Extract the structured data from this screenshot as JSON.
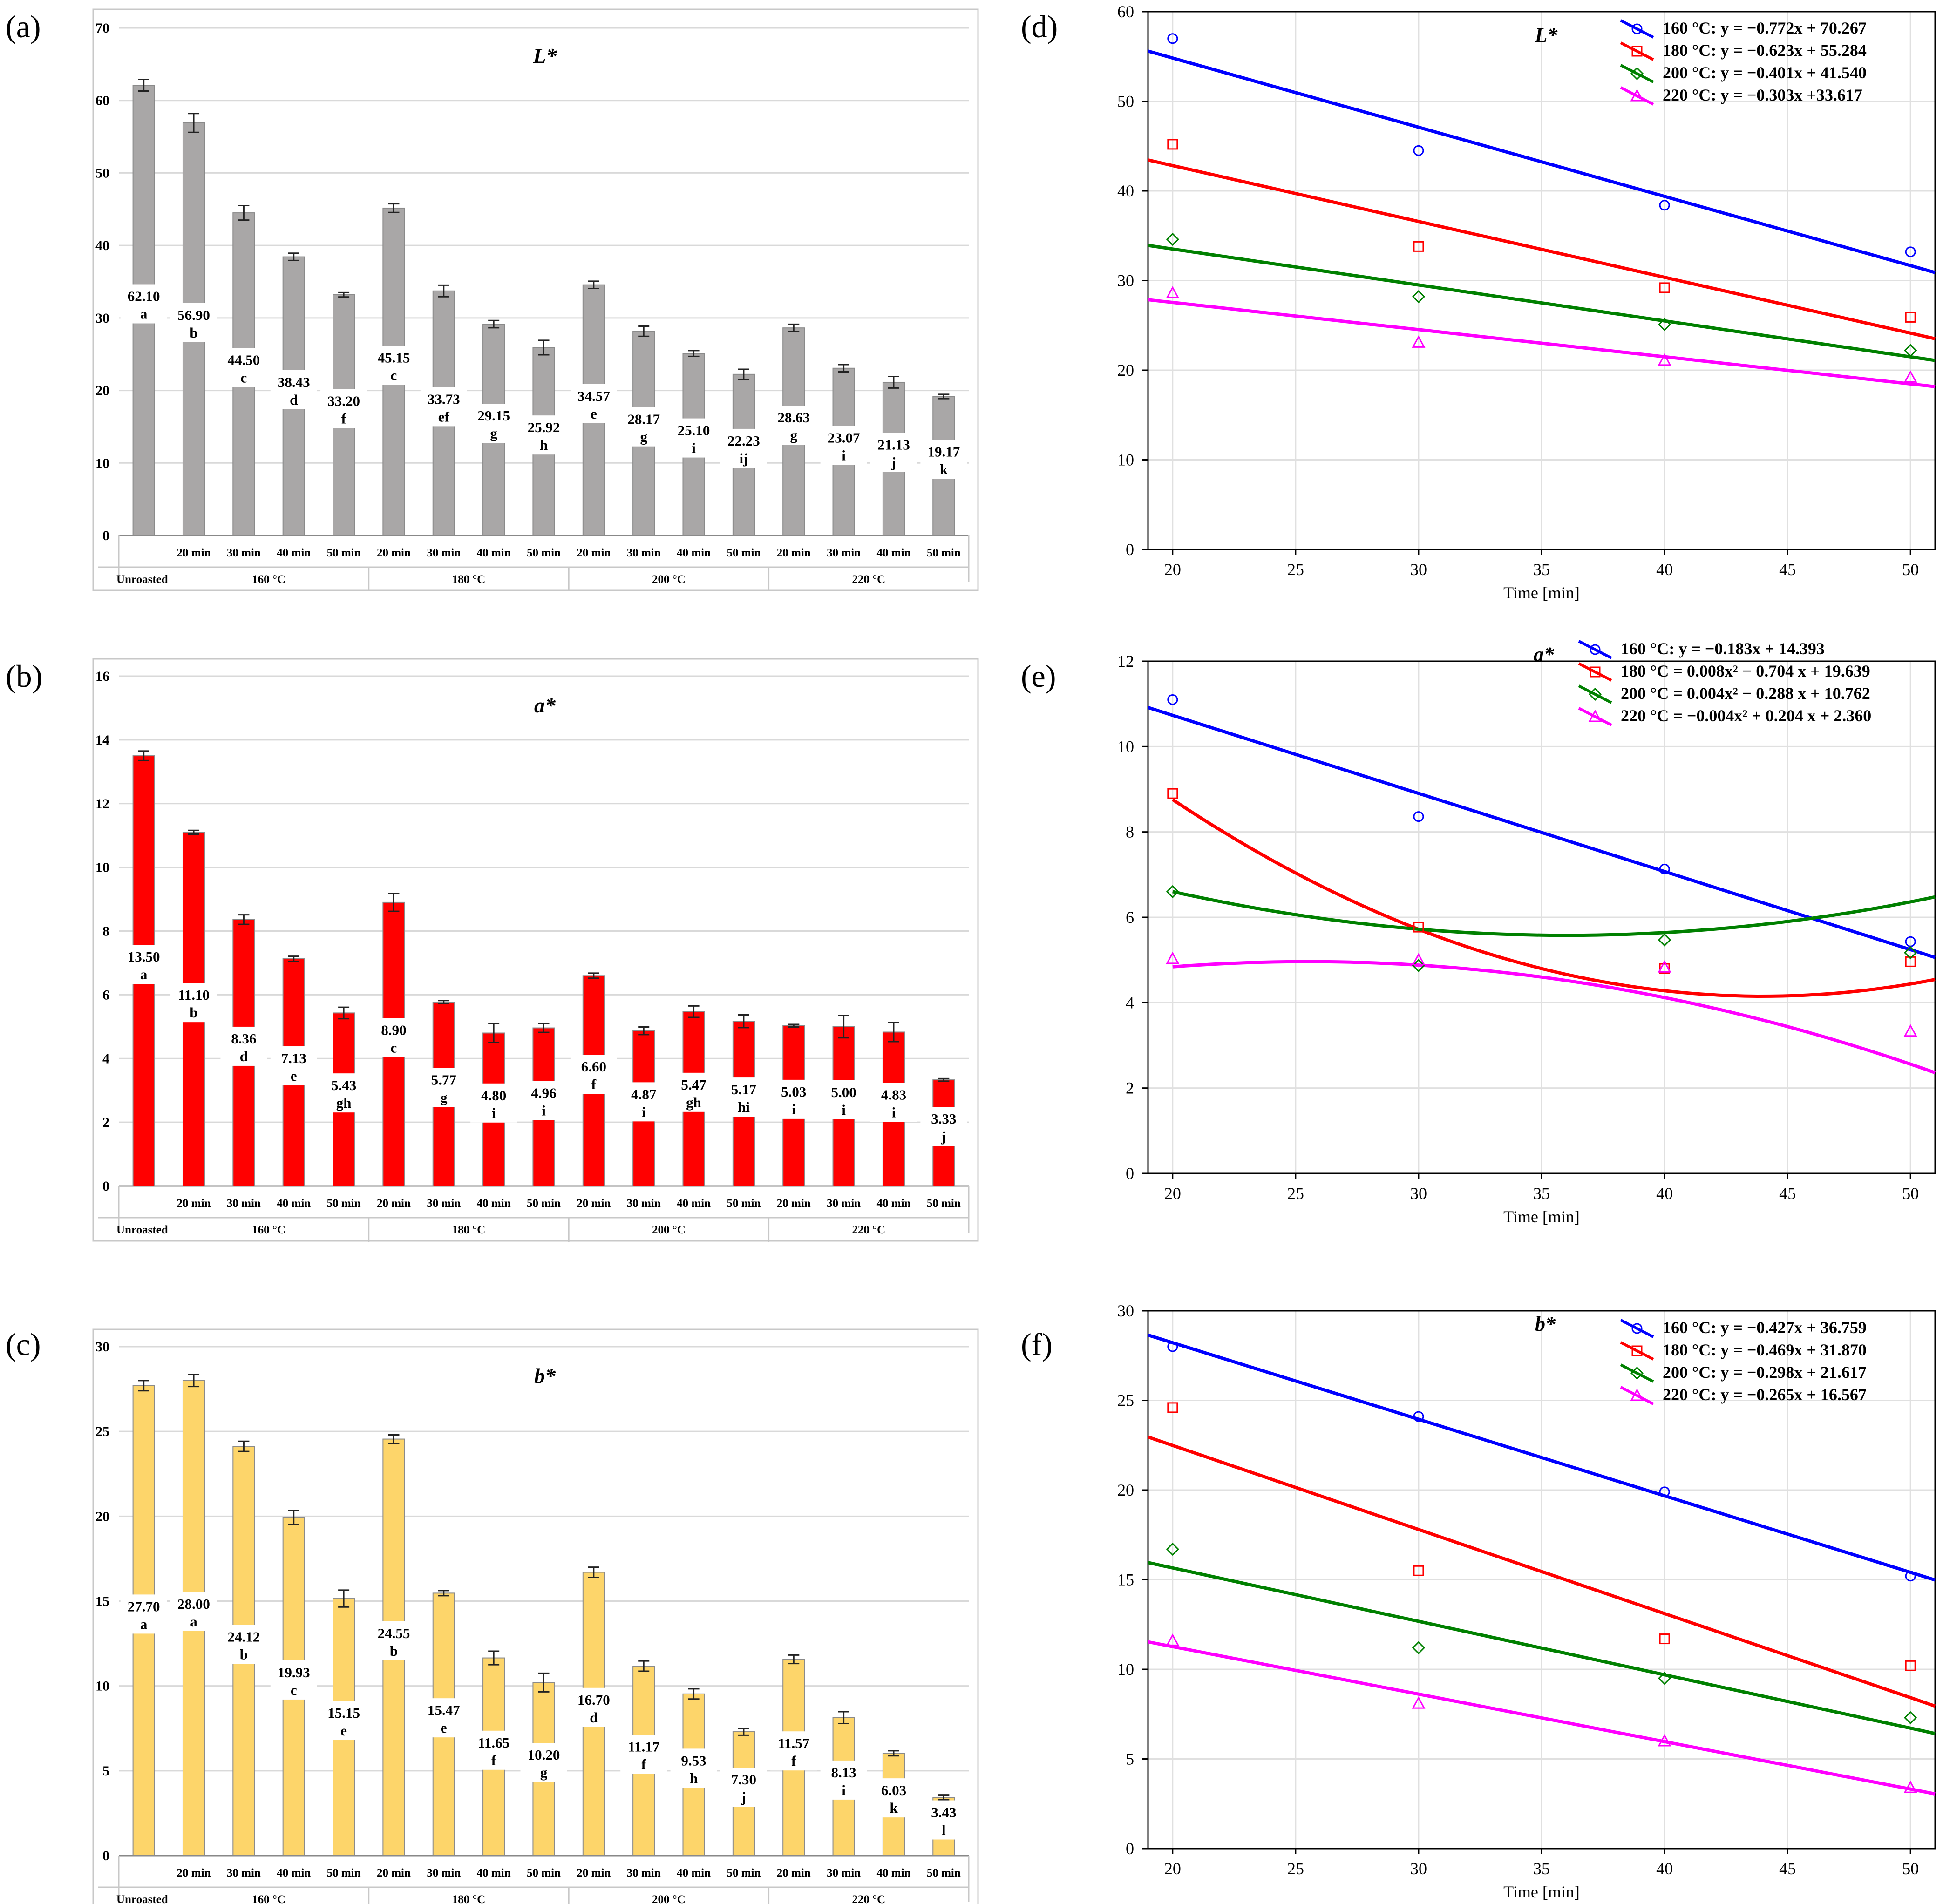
{
  "panel_labels": [
    "(a)",
    "(b)",
    "(c)",
    "(d)",
    "(e)",
    "(f)"
  ],
  "group_labels": [
    "Unroasted",
    "160 °C",
    "180 °C",
    "200 °C",
    "220 °C"
  ],
  "time_labels": [
    "20 min",
    "30 min",
    "40 min",
    "50 min"
  ],
  "scatter_xlabel": "Time [min]",
  "chart_data": [
    {
      "id": "a",
      "type": "bar",
      "title": "L*",
      "color": "#a9a7a7",
      "categories": [
        "Unroasted",
        "160 °C 20 min",
        "160 °C 30 min",
        "160 °C 40 min",
        "160 °C 50 min",
        "180 °C 20 min",
        "180 °C 30 min",
        "180 °C 40 min",
        "180 °C 50 min",
        "200 °C 20 min",
        "200 °C 30 min",
        "200 °C 40 min",
        "200 °C 50 min",
        "220 °C 20 min",
        "220 °C 30 min",
        "220 °C 40 min",
        "220 °C 50 min"
      ],
      "values": [
        62.1,
        56.9,
        44.5,
        38.43,
        33.2,
        45.15,
        33.73,
        29.15,
        25.92,
        34.57,
        28.17,
        25.1,
        22.23,
        28.63,
        23.07,
        21.13,
        19.17
      ],
      "errors": [
        0.8,
        1.3,
        1.0,
        0.5,
        0.3,
        0.6,
        0.8,
        0.5,
        1.0,
        0.5,
        0.7,
        0.4,
        0.7,
        0.5,
        0.5,
        0.8,
        0.3
      ],
      "value_labels": [
        "62.10",
        "56.90",
        "44.50",
        "38.43",
        "33.20",
        "45.15",
        "33.73",
        "29.15",
        "25.92",
        "34.57",
        "28.17",
        "25.10",
        "22.23",
        "28.63",
        "23.07",
        "21.13",
        "19.17"
      ],
      "letters": [
        "a",
        "b",
        "c",
        "d",
        "f",
        "c",
        "ef",
        "g",
        "h",
        "e",
        "g",
        "i",
        "ij",
        "g",
        "i",
        "j",
        "k"
      ],
      "yticks": [
        "0",
        "10",
        "20",
        "30",
        "40",
        "50",
        "60",
        "70"
      ],
      "ylim": [
        0,
        70
      ]
    },
    {
      "id": "b",
      "type": "bar",
      "title": "a*",
      "color": "#ff0000",
      "categories": [
        "Unroasted",
        "160 °C 20 min",
        "160 °C 30 min",
        "160 °C 40 min",
        "160 °C 50 min",
        "180 °C 20 min",
        "180 °C 30 min",
        "180 °C 40 min",
        "180 °C 50 min",
        "200 °C 20 min",
        "200 °C 30 min",
        "200 °C 40 min",
        "200 °C 50 min",
        "220 °C 20 min",
        "220 °C 30 min",
        "220 °C 40 min",
        "220 °C 50 min"
      ],
      "values": [
        13.5,
        11.1,
        8.36,
        7.13,
        5.43,
        8.9,
        5.77,
        4.8,
        4.96,
        6.6,
        4.87,
        5.47,
        5.17,
        5.03,
        5.0,
        4.83,
        3.33
      ],
      "errors": [
        0.15,
        0.06,
        0.15,
        0.08,
        0.18,
        0.28,
        0.05,
        0.3,
        0.14,
        0.08,
        0.12,
        0.18,
        0.2,
        0.04,
        0.35,
        0.3,
        0.04
      ],
      "value_labels": [
        "13.50",
        "11.10",
        "8.36",
        "7.13",
        "5.43",
        "8.90",
        "5.77",
        "4.80",
        "4.96",
        "6.60",
        "4.87",
        "5.47",
        "5.17",
        "5.03",
        "5.00",
        "4.83",
        "3.33"
      ],
      "letters": [
        "a",
        "b",
        "d",
        "e",
        "gh",
        "c",
        "g",
        "i",
        "i",
        "f",
        "i",
        "gh",
        "hi",
        "i",
        "i",
        "i",
        "j"
      ],
      "yticks": [
        "0",
        "2",
        "4",
        "6",
        "8",
        "10",
        "12",
        "14",
        "16"
      ],
      "ylim": [
        0,
        16
      ]
    },
    {
      "id": "c",
      "type": "bar",
      "title": "b*",
      "color": "#fdd56a",
      "categories": [
        "Unroasted",
        "160 °C 20 min",
        "160 °C 30 min",
        "160 °C 40 min",
        "160 °C 50 min",
        "180 °C 20 min",
        "180 °C 30 min",
        "180 °C 40 min",
        "180 °C 50 min",
        "200 °C 20 min",
        "200 °C 30 min",
        "200 °C 40 min",
        "200 °C 50 min",
        "220 °C 20 min",
        "220 °C 30 min",
        "220 °C 40 min",
        "220 °C 50 min"
      ],
      "values": [
        27.7,
        28.0,
        24.12,
        19.93,
        15.15,
        24.55,
        15.47,
        11.65,
        10.2,
        16.7,
        11.17,
        9.53,
        7.3,
        11.57,
        8.13,
        6.03,
        3.43
      ],
      "errors": [
        0.3,
        0.35,
        0.3,
        0.4,
        0.5,
        0.25,
        0.15,
        0.4,
        0.55,
        0.3,
        0.3,
        0.3,
        0.2,
        0.25,
        0.35,
        0.15,
        0.15
      ],
      "value_labels": [
        "27.70",
        "28.00",
        "24.12",
        "19.93",
        "15.15",
        "24.55",
        "15.47",
        "11.65",
        "10.20",
        "16.70",
        "11.17",
        "9.53",
        "7.30",
        "11.57",
        "8.13",
        "6.03",
        "3.43"
      ],
      "letters": [
        "a",
        "a",
        "b",
        "c",
        "e",
        "b",
        "e",
        "f",
        "g",
        "d",
        "f",
        "h",
        "j",
        "f",
        "i",
        "k",
        "l"
      ],
      "yticks": [
        "0",
        "5",
        "10",
        "15",
        "20",
        "25",
        "30"
      ],
      "ylim": [
        0,
        30
      ]
    },
    {
      "id": "d",
      "type": "scatter",
      "title": "L*",
      "xlabel": "Time [min]",
      "xlim": [
        19,
        51
      ],
      "ylim": [
        0,
        60
      ],
      "xticks": [
        "20",
        "25",
        "30",
        "35",
        "40",
        "45",
        "50"
      ],
      "yticks": [
        "0",
        "10",
        "20",
        "30",
        "40",
        "50",
        "60"
      ],
      "x": [
        20,
        30,
        40,
        50
      ],
      "series": [
        {
          "name": "160 °C",
          "color": "#0000ff",
          "marker": "circle",
          "values": [
            57.0,
            44.5,
            38.4,
            33.2
          ],
          "fit": {
            "kind": "linear",
            "coef": [
              -0.772,
              70.267
            ]
          },
          "legend_label": "160 °C:",
          "equation": "y = −0.772x + 70.267"
        },
        {
          "name": "180 °C",
          "color": "#ff0000",
          "marker": "square",
          "values": [
            45.2,
            33.8,
            29.2,
            25.9
          ],
          "fit": {
            "kind": "linear",
            "coef": [
              -0.623,
              55.284
            ]
          },
          "legend_label": "180 °C:",
          "equation": "y = −0.623x + 55.284"
        },
        {
          "name": "200 °C",
          "color": "#008000",
          "marker": "diamond",
          "values": [
            34.6,
            28.2,
            25.1,
            22.2
          ],
          "fit": {
            "kind": "linear",
            "coef": [
              -0.401,
              41.54
            ]
          },
          "legend_label": "200 °C:",
          "equation": "y = −0.401x + 41.540"
        },
        {
          "name": "220 °C",
          "color": "#ff00ff",
          "marker": "triangle",
          "values": [
            28.6,
            23.1,
            21.1,
            19.2
          ],
          "fit": {
            "kind": "linear",
            "coef": [
              -0.303,
              33.617
            ]
          },
          "legend_label": "220 °C:",
          "equation": "y = −0.303x +33.617"
        }
      ]
    },
    {
      "id": "e",
      "type": "scatter",
      "title": "a*",
      "xlabel": "Time [min]",
      "xlim": [
        19,
        51
      ],
      "ylim": [
        0,
        12
      ],
      "xticks": [
        "20",
        "25",
        "30",
        "35",
        "40",
        "45",
        "50"
      ],
      "yticks": [
        "0",
        "2",
        "4",
        "6",
        "8",
        "10",
        "12"
      ],
      "x": [
        20,
        30,
        40,
        50
      ],
      "series": [
        {
          "name": "160 °C",
          "color": "#0000ff",
          "marker": "circle",
          "values": [
            11.1,
            8.36,
            7.13,
            5.43
          ],
          "fit": {
            "kind": "linear",
            "coef": [
              -0.183,
              14.393
            ]
          },
          "legend_label": "160 °C:",
          "equation": "y = −0.183x + 14.393"
        },
        {
          "name": "180 °C",
          "color": "#ff0000",
          "marker": "square",
          "values": [
            8.9,
            5.77,
            4.8,
            4.96
          ],
          "fit": {
            "kind": "quadratic",
            "coef": [
              0.008,
              -0.704,
              19.639
            ]
          },
          "legend_label": "180 °C =",
          "equation": "0.008x² − 0.704 x + 19.639"
        },
        {
          "name": "200 °C",
          "color": "#008000",
          "marker": "diamond",
          "values": [
            6.6,
            4.87,
            5.47,
            5.17
          ],
          "fit": {
            "kind": "quadratic",
            "coef": [
              0.004,
              -0.288,
              10.762
            ]
          },
          "legend_label": "200 °C =",
          "equation": "0.004x² − 0.288 x + 10.762"
        },
        {
          "name": "220 °C",
          "color": "#ff00ff",
          "marker": "triangle",
          "values": [
            5.03,
            5.0,
            4.83,
            3.33
          ],
          "fit": {
            "kind": "quadratic",
            "coef": [
              -0.004,
              0.204,
              2.36
            ]
          },
          "legend_label": "220 °C =",
          "equation": "−0.004x² + 0.204 x + 2.360"
        }
      ]
    },
    {
      "id": "f",
      "type": "scatter",
      "title": "b*",
      "xlabel": "Time [min]",
      "xlim": [
        19,
        51
      ],
      "ylim": [
        0,
        30
      ],
      "xticks": [
        "20",
        "25",
        "30",
        "35",
        "40",
        "45",
        "50"
      ],
      "yticks": [
        "0",
        "5",
        "10",
        "15",
        "20",
        "25",
        "30"
      ],
      "x": [
        20,
        30,
        40,
        50
      ],
      "series": [
        {
          "name": "160 °C",
          "color": "#0000ff",
          "marker": "circle",
          "values": [
            28.0,
            24.1,
            19.9,
            15.2
          ],
          "fit": {
            "kind": "linear",
            "coef": [
              -0.427,
              36.759
            ]
          },
          "legend_label": "160 °C:",
          "equation": "y = −0.427x + 36.759"
        },
        {
          "name": "180 °C",
          "color": "#ff0000",
          "marker": "square",
          "values": [
            24.6,
            15.5,
            11.7,
            10.2
          ],
          "fit": {
            "kind": "linear",
            "coef": [
              -0.469,
              31.87
            ]
          },
          "legend_label": "180 °C:",
          "equation": "y = −0.469x + 31.870"
        },
        {
          "name": "200 °C",
          "color": "#008000",
          "marker": "diamond",
          "values": [
            16.7,
            11.2,
            9.5,
            7.3
          ],
          "fit": {
            "kind": "linear",
            "coef": [
              -0.298,
              21.617
            ]
          },
          "legend_label": "200 °C:",
          "equation": "y = −0.298x + 21.617"
        },
        {
          "name": "220 °C",
          "color": "#ff00ff",
          "marker": "triangle",
          "values": [
            11.6,
            8.1,
            6.0,
            3.4
          ],
          "fit": {
            "kind": "linear",
            "coef": [
              -0.265,
              16.567
            ]
          },
          "legend_label": "220 °C:",
          "equation": "y = −0.265x + 16.567"
        }
      ]
    }
  ]
}
